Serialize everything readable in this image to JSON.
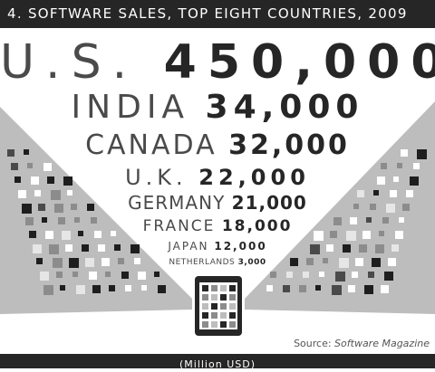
{
  "title": "4. SOFTWARE SALES, TOP EIGHT COUNTRIES, 2009",
  "unit": "(Million USD)",
  "source_prefix": "Source: ",
  "source_name": "Software Magazine",
  "colors": {
    "dark": "#262626",
    "fan": "#bdbdbd",
    "tile_light": "#ffffff",
    "tile_mid": "#8c8c8c",
    "tile_dark": "#1e1e1e"
  },
  "chart_data": {
    "type": "bar",
    "title": "4. SOFTWARE SALES, TOP EIGHT COUNTRIES, 2009",
    "xlabel": "",
    "ylabel": "(Million USD)",
    "categories": [
      "U.S.",
      "INDIA",
      "CANADA",
      "U.K.",
      "GERMANY",
      "FRANCE",
      "JAPAN",
      "NETHERLANDS"
    ],
    "values": [
      450000,
      34000,
      32000,
      22000,
      21000,
      18000,
      12000,
      3000
    ],
    "labels": [
      "450,000",
      "34,000",
      "32,000",
      "22,000",
      "21,000",
      "18,000",
      "12,000",
      "3,000"
    ],
    "names_display": [
      "U.S.",
      "INDIA",
      "CANADA",
      "U.K.",
      "GERMANY",
      "FRANCE",
      "JAPAN",
      "NETHERLANDS"
    ]
  }
}
